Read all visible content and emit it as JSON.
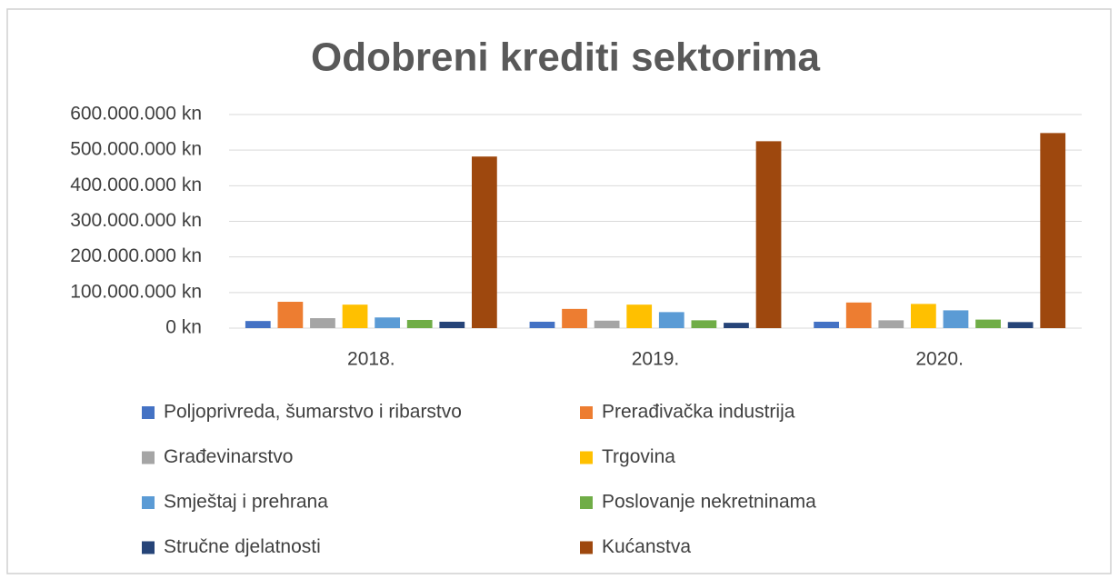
{
  "chart_data": {
    "type": "bar",
    "title": "Odobreni krediti sektorima",
    "categories": [
      "2018.",
      "2019.",
      "2020."
    ],
    "series": [
      {
        "name": "Poljoprivreda, šumarstvo i ribarstvo",
        "color": "#4472c4",
        "values": [
          20000000,
          18000000,
          18000000
        ]
      },
      {
        "name": "Prerađivačka industrija",
        "color": "#ed7d31",
        "values": [
          74000000,
          54000000,
          72000000
        ]
      },
      {
        "name": "Građevinarstvo",
        "color": "#a5a5a5",
        "values": [
          28000000,
          21000000,
          22000000
        ]
      },
      {
        "name": "Trgovina",
        "color": "#ffc000",
        "values": [
          66000000,
          66000000,
          68000000
        ]
      },
      {
        "name": "Smještaj i prehrana",
        "color": "#5b9bd5",
        "values": [
          30000000,
          45000000,
          50000000
        ]
      },
      {
        "name": "Poslovanje nekretninama",
        "color": "#70ad47",
        "values": [
          23000000,
          22000000,
          24000000
        ]
      },
      {
        "name": "Stručne djelatnosti",
        "color": "#264478",
        "values": [
          18000000,
          15000000,
          17000000
        ]
      },
      {
        "name": "Kućanstva",
        "color": "#9e480e",
        "values": [
          482000000,
          525000000,
          548000000
        ]
      }
    ],
    "ylim": [
      0,
      600000000
    ],
    "yticks": [
      {
        "value": 0,
        "label": "0 kn"
      },
      {
        "value": 100000000,
        "label": "100.000.000 kn"
      },
      {
        "value": 200000000,
        "label": "200.000.000 kn"
      },
      {
        "value": 300000000,
        "label": "300.000.000 kn"
      },
      {
        "value": 400000000,
        "label": "400.000.000 kn"
      },
      {
        "value": 500000000,
        "label": "500.000.000 kn"
      },
      {
        "value": 600000000,
        "label": "600.000.000 kn"
      }
    ],
    "grid": true,
    "legend": "bottom"
  }
}
